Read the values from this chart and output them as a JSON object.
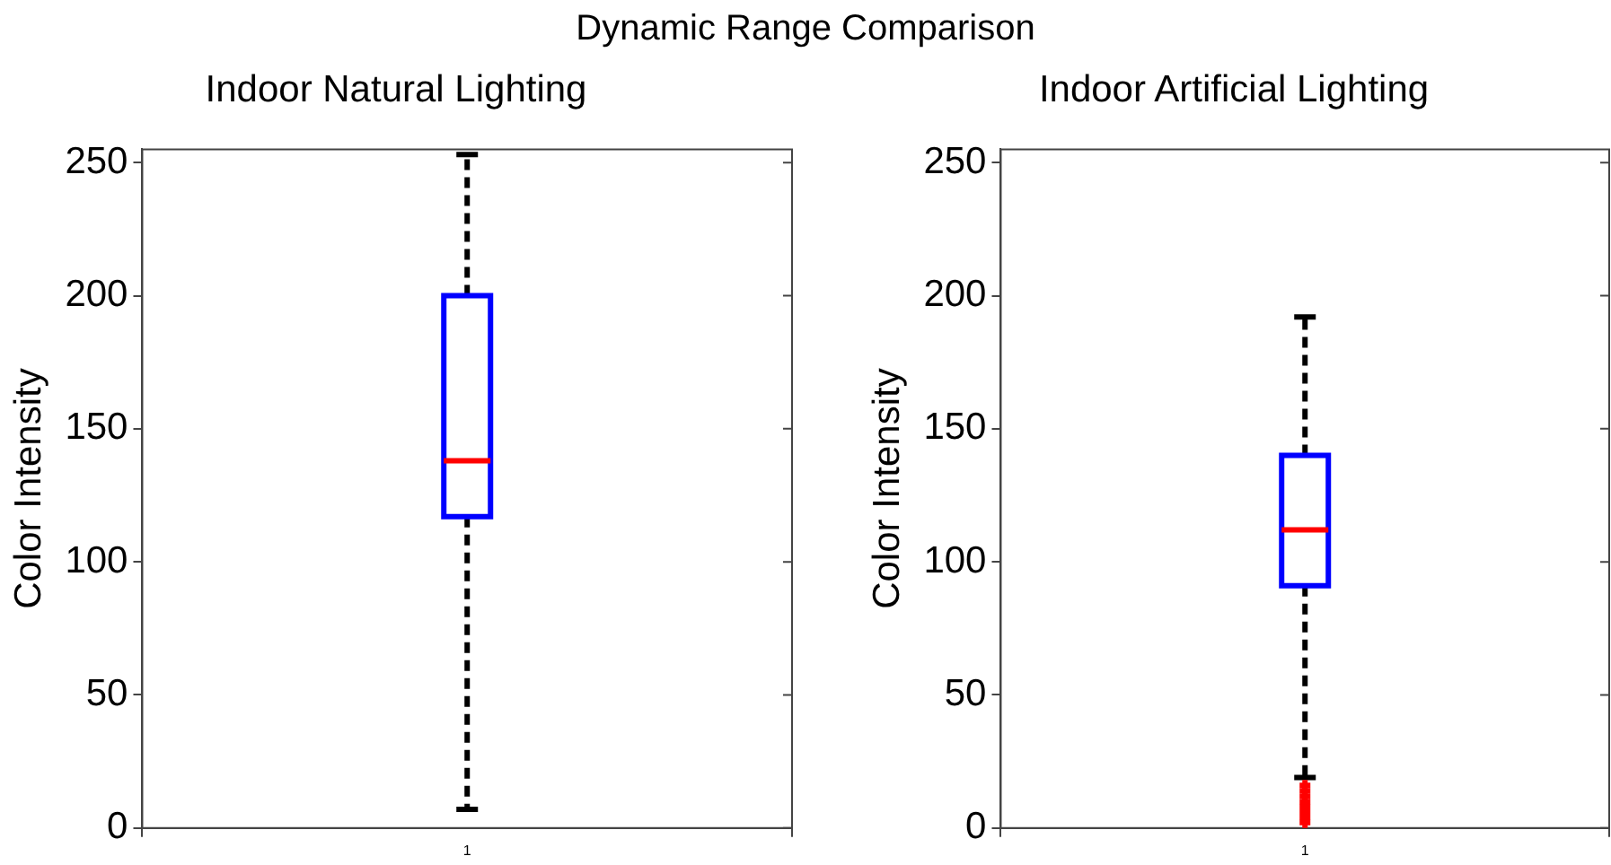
{
  "chart_data": [
    {
      "type": "box",
      "title": "Indoor Natural Lighting",
      "ylabel": "Color Intensity",
      "annotations": [
        "Dynamic Range Comparison"
      ],
      "categories": [
        "1"
      ],
      "ylim": [
        0,
        255
      ],
      "yticks": [
        0,
        50,
        100,
        150,
        200,
        250
      ],
      "grid": false,
      "series": [
        {
          "color": "#0000ff",
          "boxes": [
            {
              "low": 7,
              "q1": 117,
              "median": 138,
              "q3": 200,
              "high": 253
            }
          ]
        }
      ]
    },
    {
      "type": "box",
      "title": "Indoor Artificial Lighting",
      "ylabel": "Color Intensity",
      "categories": [
        "1"
      ],
      "ylim": [
        0,
        255
      ],
      "yticks": [
        0,
        50,
        100,
        150,
        200,
        250
      ],
      "grid": false,
      "series": [
        {
          "color": "#0000ff",
          "boxes": [
            {
              "low": 19,
              "q1": 91,
              "median": 112,
              "q3": 140,
              "high": 192,
              "outliers": [
                2,
                4,
                6,
                8,
                10,
                12,
                14,
                16
              ]
            }
          ]
        }
      ]
    }
  ]
}
